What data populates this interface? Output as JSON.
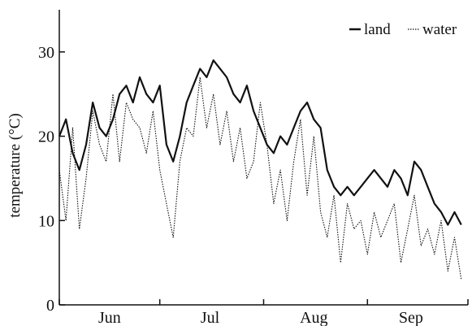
{
  "chart_data": {
    "type": "line",
    "title": "",
    "xlabel": "",
    "ylabel": "temperature (°C)",
    "ylim": [
      0,
      35
    ],
    "yticks": [
      0,
      10,
      20,
      30
    ],
    "xlim": [
      0,
      122
    ],
    "xticks": [
      {
        "label": "Jun",
        "x": 15
      },
      {
        "label": "Jul",
        "x": 45
      },
      {
        "label": "Aug",
        "x": 76
      },
      {
        "label": "Sep",
        "x": 105
      }
    ],
    "grid": false,
    "legend_position": "top-right",
    "series": [
      {
        "name": "land",
        "style": "solid",
        "color": "#111111",
        "x": [
          0,
          2,
          4,
          6,
          8,
          10,
          12,
          14,
          16,
          18,
          20,
          22,
          24,
          26,
          28,
          30,
          32,
          34,
          36,
          38,
          40,
          42,
          44,
          46,
          48,
          50,
          52,
          54,
          56,
          58,
          60,
          62,
          64,
          66,
          68,
          70,
          72,
          74,
          76,
          78,
          80,
          82,
          84,
          86,
          88,
          90,
          92,
          94,
          96,
          98,
          100,
          102,
          104,
          106,
          108,
          110,
          112,
          114,
          116,
          118,
          120
        ],
        "values": [
          20,
          22,
          18,
          16,
          19,
          24,
          21,
          20,
          22,
          25,
          26,
          24,
          27,
          25,
          24,
          26,
          19,
          17,
          20,
          24,
          26,
          28,
          27,
          29,
          28,
          27,
          25,
          24,
          26,
          23,
          21,
          19,
          18,
          20,
          19,
          21,
          23,
          24,
          22,
          21,
          16,
          14,
          13,
          14,
          13,
          14,
          15,
          16,
          15,
          14,
          16,
          15,
          13,
          17,
          16,
          14,
          12,
          11,
          9.5,
          11,
          9.5
        ]
      },
      {
        "name": "water",
        "style": "dotted",
        "color": "#111111",
        "x": [
          0,
          2,
          4,
          6,
          8,
          10,
          12,
          14,
          16,
          18,
          20,
          22,
          24,
          26,
          28,
          30,
          32,
          34,
          36,
          38,
          40,
          42,
          44,
          46,
          48,
          50,
          52,
          54,
          56,
          58,
          60,
          62,
          64,
          66,
          68,
          70,
          72,
          74,
          76,
          78,
          80,
          82,
          84,
          86,
          88,
          90,
          92,
          94,
          96,
          98,
          100,
          102,
          104,
          106,
          108,
          110,
          112,
          114,
          116,
          118,
          120
        ],
        "values": [
          16,
          10,
          21,
          9,
          15,
          23,
          19,
          17,
          25,
          17,
          24,
          22,
          21,
          18,
          23,
          16,
          12,
          8,
          17,
          21,
          20,
          27,
          21,
          25,
          19,
          23,
          17,
          21,
          15,
          17,
          24,
          19,
          12,
          16,
          10,
          17,
          22,
          13,
          20,
          11,
          8,
          13,
          5,
          12,
          9,
          10,
          6,
          11,
          8,
          10,
          12,
          5,
          9,
          13,
          7,
          9,
          6,
          10,
          4,
          8,
          3
        ]
      }
    ],
    "legend": [
      {
        "name": "land",
        "style": "solid"
      },
      {
        "name": "water",
        "style": "dotted"
      }
    ]
  }
}
